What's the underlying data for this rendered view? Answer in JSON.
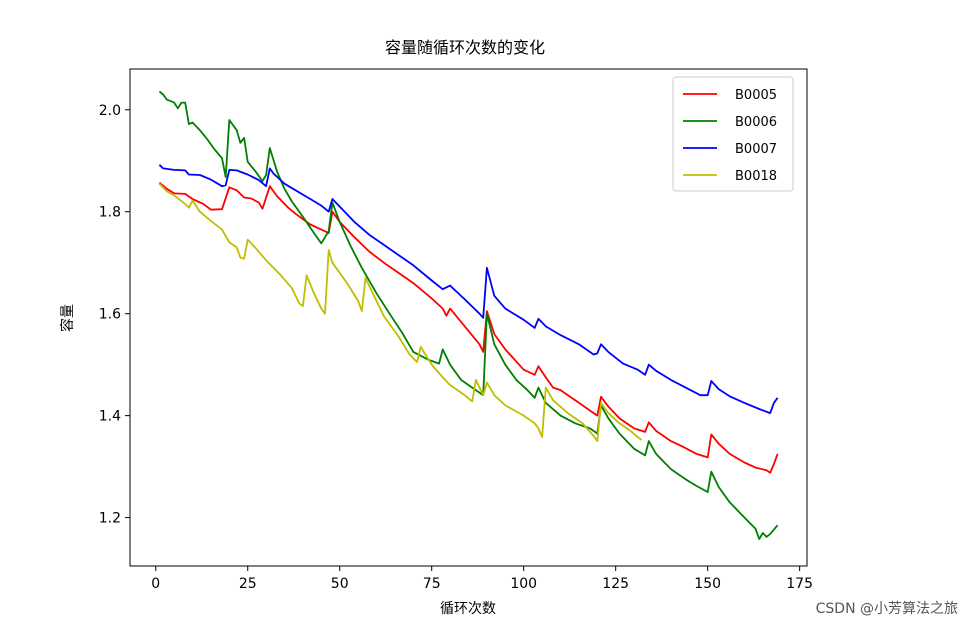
{
  "watermark": "CSDN @小芳算法之旅",
  "chart_data": {
    "type": "line",
    "title": "容量随循环次数的变化",
    "xlabel": "循环次数",
    "ylabel": "容量",
    "xlim": [
      -7,
      177
    ],
    "ylim": [
      1.105,
      2.08
    ],
    "xticks": [
      0,
      25,
      50,
      75,
      100,
      125,
      150,
      175
    ],
    "yticks": [
      1.2,
      1.4,
      1.6,
      1.8,
      2.0
    ],
    "legend_position": "top-right",
    "grid": false,
    "series": [
      {
        "name": "B0005",
        "color": "#ff0000",
        "points": [
          [
            1,
            1.857
          ],
          [
            3,
            1.845
          ],
          [
            5,
            1.836
          ],
          [
            8,
            1.835
          ],
          [
            10,
            1.825
          ],
          [
            13,
            1.815
          ],
          [
            15,
            1.804
          ],
          [
            18,
            1.805
          ],
          [
            20,
            1.848
          ],
          [
            22,
            1.842
          ],
          [
            24,
            1.828
          ],
          [
            26,
            1.826
          ],
          [
            28,
            1.818
          ],
          [
            29,
            1.806
          ],
          [
            31,
            1.85
          ],
          [
            33,
            1.83
          ],
          [
            36,
            1.808
          ],
          [
            38,
            1.796
          ],
          [
            42,
            1.775
          ],
          [
            45,
            1.765
          ],
          [
            47,
            1.758
          ],
          [
            48,
            1.8
          ],
          [
            50,
            1.78
          ],
          [
            54,
            1.75
          ],
          [
            58,
            1.722
          ],
          [
            62,
            1.7
          ],
          [
            66,
            1.68
          ],
          [
            70,
            1.66
          ],
          [
            75,
            1.63
          ],
          [
            78,
            1.61
          ],
          [
            79,
            1.596
          ],
          [
            80,
            1.61
          ],
          [
            84,
            1.575
          ],
          [
            88,
            1.54
          ],
          [
            89,
            1.525
          ],
          [
            90,
            1.605
          ],
          [
            92,
            1.56
          ],
          [
            95,
            1.53
          ],
          [
            100,
            1.49
          ],
          [
            103,
            1.48
          ],
          [
            104,
            1.497
          ],
          [
            106,
            1.475
          ],
          [
            108,
            1.455
          ],
          [
            110,
            1.45
          ],
          [
            114,
            1.43
          ],
          [
            118,
            1.41
          ],
          [
            120,
            1.4
          ],
          [
            121,
            1.437
          ],
          [
            123,
            1.418
          ],
          [
            126,
            1.395
          ],
          [
            130,
            1.375
          ],
          [
            133,
            1.368
          ],
          [
            134,
            1.387
          ],
          [
            136,
            1.37
          ],
          [
            140,
            1.35
          ],
          [
            143,
            1.34
          ],
          [
            147,
            1.325
          ],
          [
            150,
            1.318
          ],
          [
            151,
            1.363
          ],
          [
            153,
            1.345
          ],
          [
            156,
            1.325
          ],
          [
            160,
            1.308
          ],
          [
            163,
            1.298
          ],
          [
            166,
            1.293
          ],
          [
            167,
            1.288
          ],
          [
            168,
            1.305
          ],
          [
            169,
            1.325
          ]
        ]
      },
      {
        "name": "B0006",
        "color": "#008000",
        "points": [
          [
            1,
            2.036
          ],
          [
            2,
            2.03
          ],
          [
            3,
            2.02
          ],
          [
            5,
            2.014
          ],
          [
            6,
            2.003
          ],
          [
            7,
            2.014
          ],
          [
            8,
            2.014
          ],
          [
            9,
            1.972
          ],
          [
            10,
            1.975
          ],
          [
            12,
            1.96
          ],
          [
            14,
            1.942
          ],
          [
            16,
            1.922
          ],
          [
            18,
            1.905
          ],
          [
            19,
            1.868
          ],
          [
            20,
            1.98
          ],
          [
            22,
            1.96
          ],
          [
            23,
            1.935
          ],
          [
            24,
            1.945
          ],
          [
            25,
            1.898
          ],
          [
            27,
            1.88
          ],
          [
            29,
            1.86
          ],
          [
            30,
            1.872
          ],
          [
            31,
            1.925
          ],
          [
            33,
            1.878
          ],
          [
            35,
            1.845
          ],
          [
            37,
            1.82
          ],
          [
            40,
            1.79
          ],
          [
            43,
            1.758
          ],
          [
            45,
            1.738
          ],
          [
            47,
            1.762
          ],
          [
            48,
            1.818
          ],
          [
            50,
            1.78
          ],
          [
            53,
            1.732
          ],
          [
            56,
            1.69
          ],
          [
            60,
            1.64
          ],
          [
            64,
            1.595
          ],
          [
            67,
            1.562
          ],
          [
            70,
            1.525
          ],
          [
            74,
            1.51
          ],
          [
            77,
            1.502
          ],
          [
            78,
            1.53
          ],
          [
            80,
            1.5
          ],
          [
            83,
            1.47
          ],
          [
            86,
            1.455
          ],
          [
            89,
            1.44
          ],
          [
            90,
            1.6
          ],
          [
            92,
            1.54
          ],
          [
            95,
            1.5
          ],
          [
            98,
            1.47
          ],
          [
            101,
            1.45
          ],
          [
            103,
            1.435
          ],
          [
            104,
            1.455
          ],
          [
            106,
            1.425
          ],
          [
            110,
            1.4
          ],
          [
            114,
            1.385
          ],
          [
            118,
            1.375
          ],
          [
            120,
            1.365
          ],
          [
            121,
            1.42
          ],
          [
            123,
            1.395
          ],
          [
            126,
            1.365
          ],
          [
            130,
            1.335
          ],
          [
            133,
            1.322
          ],
          [
            134,
            1.35
          ],
          [
            136,
            1.325
          ],
          [
            140,
            1.295
          ],
          [
            144,
            1.275
          ],
          [
            147,
            1.262
          ],
          [
            150,
            1.25
          ],
          [
            151,
            1.29
          ],
          [
            153,
            1.26
          ],
          [
            156,
            1.23
          ],
          [
            160,
            1.2
          ],
          [
            163,
            1.178
          ],
          [
            164,
            1.158
          ],
          [
            165,
            1.17
          ],
          [
            166,
            1.162
          ],
          [
            167,
            1.168
          ],
          [
            169,
            1.185
          ]
        ]
      },
      {
        "name": "B0007",
        "color": "#0000ff",
        "points": [
          [
            1,
            1.892
          ],
          [
            2,
            1.885
          ],
          [
            5,
            1.882
          ],
          [
            8,
            1.881
          ],
          [
            9,
            1.873
          ],
          [
            12,
            1.872
          ],
          [
            15,
            1.863
          ],
          [
            18,
            1.85
          ],
          [
            19,
            1.852
          ],
          [
            20,
            1.882
          ],
          [
            22,
            1.881
          ],
          [
            25,
            1.873
          ],
          [
            28,
            1.862
          ],
          [
            30,
            1.85
          ],
          [
            31,
            1.885
          ],
          [
            32,
            1.875
          ],
          [
            35,
            1.855
          ],
          [
            38,
            1.842
          ],
          [
            42,
            1.825
          ],
          [
            45,
            1.812
          ],
          [
            47,
            1.8
          ],
          [
            48,
            1.825
          ],
          [
            50,
            1.81
          ],
          [
            54,
            1.78
          ],
          [
            58,
            1.755
          ],
          [
            62,
            1.735
          ],
          [
            66,
            1.715
          ],
          [
            70,
            1.695
          ],
          [
            75,
            1.665
          ],
          [
            78,
            1.648
          ],
          [
            80,
            1.655
          ],
          [
            84,
            1.628
          ],
          [
            88,
            1.6
          ],
          [
            89,
            1.592
          ],
          [
            90,
            1.69
          ],
          [
            92,
            1.635
          ],
          [
            95,
            1.61
          ],
          [
            100,
            1.588
          ],
          [
            103,
            1.572
          ],
          [
            104,
            1.59
          ],
          [
            106,
            1.575
          ],
          [
            110,
            1.558
          ],
          [
            115,
            1.54
          ],
          [
            119,
            1.52
          ],
          [
            120,
            1.522
          ],
          [
            121,
            1.54
          ],
          [
            123,
            1.525
          ],
          [
            127,
            1.502
          ],
          [
            131,
            1.49
          ],
          [
            133,
            1.48
          ],
          [
            134,
            1.5
          ],
          [
            136,
            1.488
          ],
          [
            140,
            1.47
          ],
          [
            144,
            1.455
          ],
          [
            148,
            1.44
          ],
          [
            150,
            1.44
          ],
          [
            151,
            1.468
          ],
          [
            153,
            1.452
          ],
          [
            156,
            1.438
          ],
          [
            160,
            1.425
          ],
          [
            164,
            1.413
          ],
          [
            167,
            1.405
          ],
          [
            168,
            1.425
          ],
          [
            169,
            1.435
          ]
        ]
      },
      {
        "name": "B0018",
        "color": "#bfbf00",
        "points": [
          [
            1,
            1.855
          ],
          [
            3,
            1.84
          ],
          [
            5,
            1.832
          ],
          [
            8,
            1.815
          ],
          [
            9,
            1.808
          ],
          [
            10,
            1.822
          ],
          [
            12,
            1.8
          ],
          [
            15,
            1.782
          ],
          [
            18,
            1.765
          ],
          [
            20,
            1.74
          ],
          [
            22,
            1.73
          ],
          [
            23,
            1.71
          ],
          [
            24,
            1.708
          ],
          [
            25,
            1.745
          ],
          [
            27,
            1.73
          ],
          [
            30,
            1.705
          ],
          [
            34,
            1.675
          ],
          [
            37,
            1.65
          ],
          [
            39,
            1.62
          ],
          [
            40,
            1.615
          ],
          [
            41,
            1.675
          ],
          [
            43,
            1.64
          ],
          [
            45,
            1.61
          ],
          [
            46,
            1.6
          ],
          [
            47,
            1.725
          ],
          [
            48,
            1.7
          ],
          [
            50,
            1.68
          ],
          [
            52,
            1.66
          ],
          [
            55,
            1.625
          ],
          [
            56,
            1.605
          ],
          [
            57,
            1.67
          ],
          [
            59,
            1.64
          ],
          [
            62,
            1.595
          ],
          [
            66,
            1.555
          ],
          [
            69,
            1.52
          ],
          [
            71,
            1.505
          ],
          [
            72,
            1.535
          ],
          [
            75,
            1.5
          ],
          [
            78,
            1.475
          ],
          [
            80,
            1.46
          ],
          [
            84,
            1.44
          ],
          [
            86,
            1.428
          ],
          [
            87,
            1.47
          ],
          [
            89,
            1.44
          ],
          [
            90,
            1.465
          ],
          [
            92,
            1.44
          ],
          [
            95,
            1.42
          ],
          [
            100,
            1.4
          ],
          [
            103,
            1.385
          ],
          [
            104,
            1.375
          ],
          [
            105,
            1.358
          ],
          [
            106,
            1.455
          ],
          [
            108,
            1.43
          ],
          [
            112,
            1.405
          ],
          [
            116,
            1.385
          ],
          [
            119,
            1.36
          ],
          [
            120,
            1.35
          ],
          [
            121,
            1.425
          ],
          [
            123,
            1.405
          ],
          [
            126,
            1.385
          ],
          [
            129,
            1.37
          ],
          [
            132,
            1.352
          ]
        ]
      }
    ]
  }
}
